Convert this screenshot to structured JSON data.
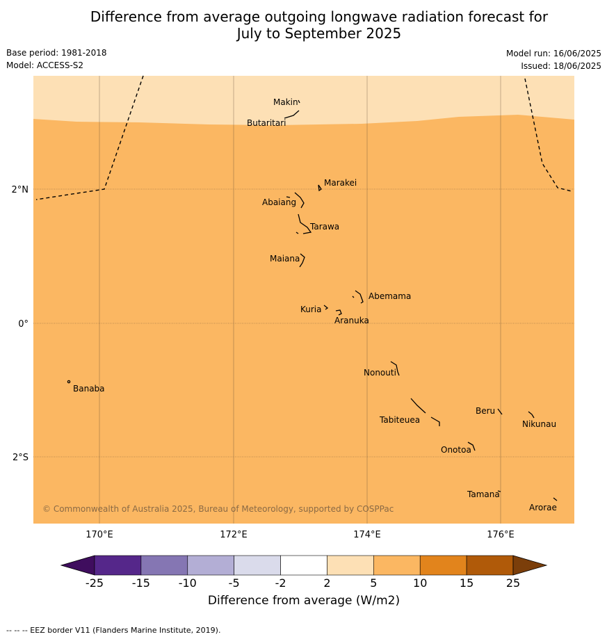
{
  "title_line1": "Difference from average outgoing longwave radiation forecast for",
  "title_line2": "July to September 2025",
  "meta": {
    "base_period": "Base period: 1981-2018",
    "model": "Model: ACCESS-S2",
    "model_run": "Model run: 16/06/2025",
    "issued": "Issued: 18/06/2025"
  },
  "map": {
    "lon_ticks": [
      "170°E",
      "172°E",
      "174°E",
      "176°E"
    ],
    "lat_ticks": [
      "2°N",
      "0°",
      "2°S"
    ],
    "copyright": "© Commonwealth of Australia 2025, Bureau of Meteorology, supported by COSPPac",
    "places": [
      {
        "name": "Makin"
      },
      {
        "name": "Butaritari"
      },
      {
        "name": "Marakei"
      },
      {
        "name": "Abaiang"
      },
      {
        "name": "Tarawa"
      },
      {
        "name": "Maiana"
      },
      {
        "name": "Abemama"
      },
      {
        "name": "Kuria"
      },
      {
        "name": "Aranuka"
      },
      {
        "name": "Nonouti"
      },
      {
        "name": "Banaba"
      },
      {
        "name": "Beru"
      },
      {
        "name": "Tabiteuea"
      },
      {
        "name": "Nikunau"
      },
      {
        "name": "Onotoa"
      },
      {
        "name": "Tamana"
      },
      {
        "name": "Arorae"
      }
    ],
    "colors": {
      "band_2_5": "#fde0b5",
      "band_5_10": "#fbb762"
    }
  },
  "colorbar": {
    "title": "Difference from average (W/m2)",
    "ticks": [
      "-25",
      "-15",
      "-10",
      "-5",
      "-2",
      "2",
      "5",
      "10",
      "15",
      "25"
    ],
    "colors": [
      "#3f0d5e",
      "#55278a",
      "#8576b3",
      "#b3aed5",
      "#dadbeb",
      "#ffffff",
      "#fde0b5",
      "#fbb762",
      "#e2841c",
      "#b05a09",
      "#7b3e0a"
    ]
  },
  "footnote": "--  --  -- EEZ border V11 (Flanders Marine Institute, 2019)."
}
